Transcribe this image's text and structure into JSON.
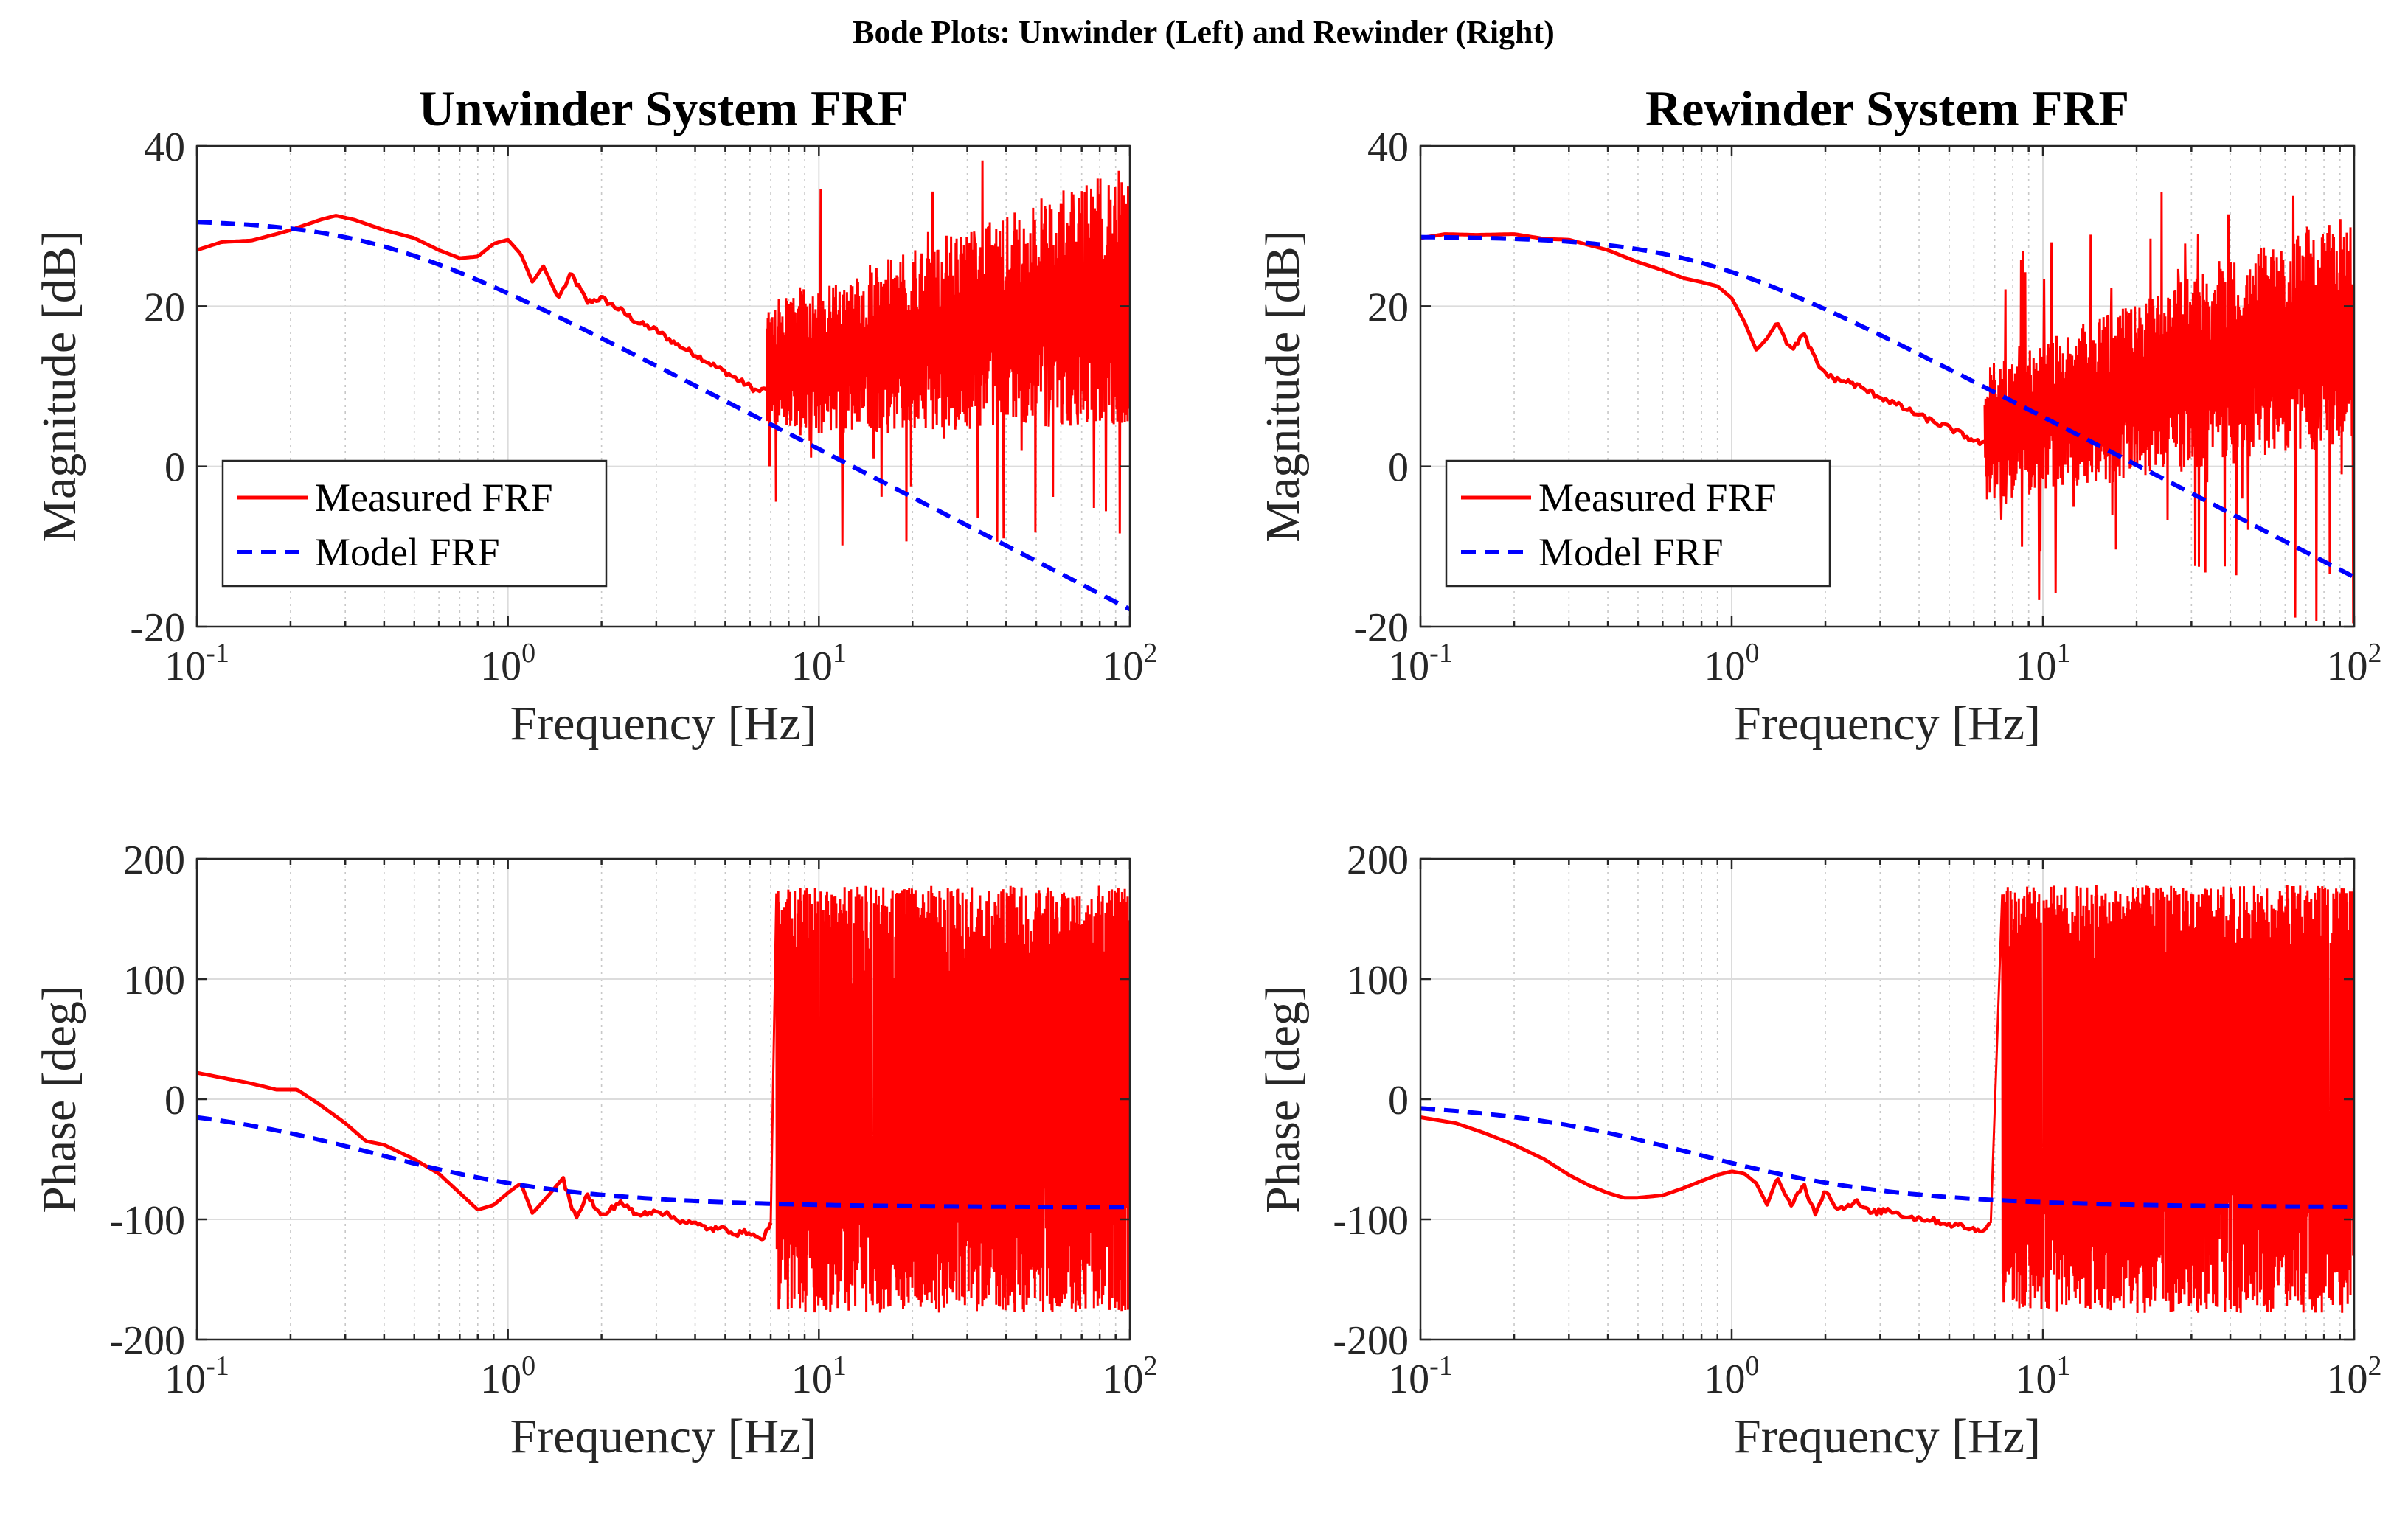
{
  "figure_title": "Bode Plots: Unwinder (Left) and Rewinder (Right)",
  "colors": {
    "measured": "#ff0000",
    "model": "#0000ff"
  },
  "chart_data": [
    {
      "id": "unwinder-magnitude",
      "type": "line",
      "title": "Unwinder System FRF",
      "xlabel": "Frequency [Hz]",
      "ylabel": "Magnitude [dB]",
      "xscale": "log",
      "xlim": [
        0.1,
        100
      ],
      "ylim": [
        -20,
        40
      ],
      "yticks": [
        -20,
        0,
        20,
        40
      ],
      "xtick_base": "10",
      "xtick_exponents": [
        "-1",
        "0",
        "1",
        "2"
      ],
      "legend": {
        "position": "bottom-left",
        "entries": [
          "Measured FRF",
          "Model FRF"
        ]
      },
      "series": [
        {
          "name": "Measured FRF",
          "style": "solid",
          "x": [
            0.1,
            0.12,
            0.15,
            0.18,
            0.2,
            0.25,
            0.28,
            0.32,
            0.4,
            0.5,
            0.6,
            0.7,
            0.8,
            0.9,
            1.0,
            1.1,
            1.2,
            1.3,
            1.45,
            1.6,
            1.8,
            2.0,
            2.3,
            2.6,
            3.0,
            3.5,
            4.0,
            4.5,
            5.0,
            5.5,
            6.0,
            6.3,
            6.6,
            7.0
          ],
          "y": [
            27,
            28,
            28.2,
            29,
            29.5,
            30.8,
            31.3,
            30.8,
            29.5,
            28.5,
            27,
            26,
            26.2,
            27.8,
            28.3,
            26.5,
            23,
            25,
            21,
            24,
            20.5,
            21,
            19.5,
            18,
            17,
            15.2,
            14,
            12.8,
            11.8,
            10.8,
            10,
            9.4,
            9.5,
            10.2
          ],
          "noise": {
            "from_hz": 6.8,
            "to_hz": 100,
            "upper_db_at_start": 19,
            "upper_db_at_end": 35,
            "lower_db_at_start": 5,
            "lower_db_at_end": 8,
            "max_db": 39,
            "min_db": -10.5
          }
        },
        {
          "name": "Model FRF",
          "style": "dashed",
          "model": {
            "kind": "first-order",
            "gain_db": 30.8,
            "corner_hz": 0.37
          }
        }
      ]
    },
    {
      "id": "rewinder-magnitude",
      "type": "line",
      "title": "Rewinder System FRF",
      "xlabel": "Frequency [Hz]",
      "ylabel": "Magnitude [dB]",
      "xscale": "log",
      "xlim": [
        0.1,
        100
      ],
      "ylim": [
        -20,
        40
      ],
      "yticks": [
        -20,
        0,
        20,
        40
      ],
      "xtick_base": "10",
      "xtick_exponents": [
        "-1",
        "0",
        "1",
        "2"
      ],
      "legend": {
        "position": "bottom-left",
        "entries": [
          "Measured FRF",
          "Model FRF"
        ]
      },
      "series": [
        {
          "name": "Measured FRF",
          "style": "solid",
          "x": [
            0.1,
            0.12,
            0.15,
            0.2,
            0.25,
            0.3,
            0.4,
            0.5,
            0.6,
            0.7,
            0.8,
            0.9,
            1.0,
            1.1,
            1.2,
            1.3,
            1.4,
            1.55,
            1.7,
            1.9,
            2.1,
            2.4,
            2.8,
            3.2,
            3.7,
            4.3,
            5.0,
            5.6,
            6.2,
            6.8
          ],
          "y": [
            28.5,
            29,
            28.9,
            29,
            28.4,
            28.3,
            27,
            25.5,
            24.5,
            23.5,
            23,
            22.5,
            21,
            18,
            14.5,
            16,
            18,
            14.5,
            16.5,
            12.5,
            11,
            10.5,
            9.2,
            8.2,
            7,
            5.8,
            4.8,
            3.8,
            3,
            2.5
          ],
          "noise": {
            "from_hz": 6.5,
            "to_hz": 100,
            "upper_db_at_start": 11,
            "upper_db_at_end": 30,
            "lower_db_at_start": -3,
            "lower_db_at_end": 5,
            "max_db": 35,
            "min_db": -20
          }
        },
        {
          "name": "Model FRF",
          "style": "dashed",
          "model": {
            "kind": "first-order",
            "gain_db": 28.7,
            "corner_hz": 0.75
          }
        }
      ]
    },
    {
      "id": "unwinder-phase",
      "type": "line",
      "title": "",
      "xlabel": "Frequency [Hz]",
      "ylabel": "Phase [deg]",
      "xscale": "log",
      "xlim": [
        0.1,
        100
      ],
      "ylim": [
        -200,
        200
      ],
      "yticks": [
        -200,
        -100,
        0,
        100,
        200
      ],
      "xtick_base": "10",
      "xtick_exponents": [
        "-1",
        "0",
        "1",
        "2"
      ],
      "series": [
        {
          "name": "Measured FRF",
          "style": "solid",
          "x": [
            0.1,
            0.12,
            0.15,
            0.18,
            0.21,
            0.25,
            0.3,
            0.35,
            0.4,
            0.5,
            0.6,
            0.7,
            0.8,
            0.9,
            1.0,
            1.1,
            1.2,
            1.35,
            1.5,
            1.65,
            1.8,
            2.0,
            2.3,
            2.6,
            3.0,
            3.5,
            4.0,
            4.5,
            5.0,
            5.5,
            6.0,
            6.5,
            7.0
          ],
          "y": [
            22,
            18,
            13,
            8,
            8,
            -5,
            -20,
            -35,
            -38,
            -50,
            -62,
            -78,
            -92,
            -88,
            -78,
            -70,
            -95,
            -80,
            -66,
            -98,
            -80,
            -98,
            -85,
            -97,
            -92,
            -100,
            -104,
            -108,
            -108,
            -112,
            -110,
            -118,
            -104
          ],
          "noise": {
            "from_hz": 7.3,
            "to_hz": 100,
            "upper_deg": 178,
            "lower_deg": -178
          }
        },
        {
          "name": "Model FRF",
          "style": "dashed",
          "model": {
            "kind": "first-order-phase",
            "corner_hz": 0.37,
            "min_deg": -90
          }
        }
      ]
    },
    {
      "id": "rewinder-phase",
      "type": "line",
      "title": "",
      "xlabel": "Frequency [Hz]",
      "ylabel": "Phase [deg]",
      "xscale": "log",
      "xlim": [
        0.1,
        100
      ],
      "ylim": [
        -200,
        200
      ],
      "yticks": [
        -200,
        -100,
        0,
        100,
        200
      ],
      "xtick_base": "10",
      "xtick_exponents": [
        "-1",
        "0",
        "1",
        "2"
      ],
      "series": [
        {
          "name": "Measured FRF",
          "style": "solid",
          "x": [
            0.1,
            0.13,
            0.16,
            0.2,
            0.25,
            0.3,
            0.35,
            0.4,
            0.45,
            0.5,
            0.6,
            0.7,
            0.8,
            0.9,
            1.0,
            1.1,
            1.2,
            1.3,
            1.4,
            1.55,
            1.7,
            1.85,
            2.0,
            2.2,
            2.5,
            2.8,
            3.2,
            3.7,
            4.3,
            5.0,
            5.6,
            6.2,
            6.8
          ],
          "y": [
            -15,
            -20,
            -28,
            -38,
            -50,
            -63,
            -72,
            -78,
            -82,
            -82,
            -80,
            -74,
            -68,
            -63,
            -60,
            -62,
            -70,
            -88,
            -65,
            -90,
            -70,
            -95,
            -75,
            -92,
            -85,
            -95,
            -92,
            -98,
            -100,
            -104,
            -106,
            -110,
            -103
          ],
          "noise": {
            "from_hz": 7.4,
            "to_hz": 100,
            "upper_deg": 178,
            "lower_deg": -178
          }
        },
        {
          "name": "Model FRF",
          "style": "dashed",
          "model": {
            "kind": "first-order-phase",
            "corner_hz": 0.75,
            "min_deg": -90
          }
        }
      ]
    }
  ]
}
